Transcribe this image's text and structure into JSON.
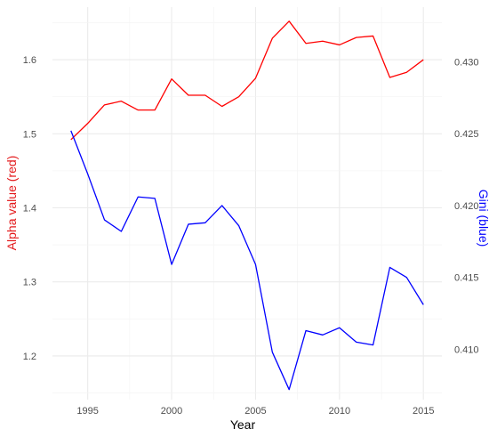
{
  "chart_data": {
    "type": "line",
    "xlabel": "Year",
    "ylabel_left": "Alpha value (red)",
    "ylabel_right": "Gini (blue)",
    "grid": true,
    "legend": "none",
    "x": [
      1994,
      1995,
      1996,
      1997,
      1998,
      1999,
      2000,
      2001,
      2002,
      2003,
      2004,
      2005,
      2006,
      2007,
      2008,
      2009,
      2010,
      2011,
      2012,
      2013,
      2014,
      2015
    ],
    "xlim": [
      1992.9,
      2016.1
    ],
    "x_ticks": [
      1995,
      2000,
      2005,
      2010,
      2015
    ],
    "x_tick_labels": [
      "1995",
      "2000",
      "2005",
      "2010",
      "2015"
    ],
    "left_axis": {
      "ylim": [
        1.141,
        1.671
      ],
      "ticks": [
        1.2,
        1.3,
        1.4,
        1.5,
        1.6
      ],
      "tick_labels": [
        "1.2",
        "1.3",
        "1.4",
        "1.5",
        "1.6"
      ],
      "color": "#e31a1c"
    },
    "right_axis": {
      "ylim": [
        0.4065,
        0.4338
      ],
      "ticks": [
        0.41,
        0.415,
        0.42,
        0.425,
        0.43
      ],
      "tick_labels": [
        "0.410",
        "0.415",
        "0.420",
        "0.425",
        "0.430"
      ],
      "color": "#0000ff"
    },
    "series": [
      {
        "axis": "left",
        "color": "#ff0000",
        "values": [
          1.492,
          1.514,
          1.539,
          1.544,
          1.532,
          1.532,
          1.574,
          1.552,
          1.552,
          1.537,
          1.55,
          1.575,
          1.629,
          1.652,
          1.622,
          1.625,
          1.62,
          1.63,
          1.632,
          1.576,
          1.583,
          1.6
        ]
      },
      {
        "axis": "right",
        "color": "#0000ff",
        "values": [
          0.4252,
          0.4222,
          0.419,
          0.4182,
          0.4206,
          0.4205,
          0.4159,
          0.4187,
          0.4188,
          0.42,
          0.4186,
          0.4159,
          0.4098,
          0.4072,
          0.4113,
          0.411,
          0.4115,
          0.4105,
          0.4103,
          0.4157,
          0.415,
          0.4131
        ]
      }
    ]
  }
}
